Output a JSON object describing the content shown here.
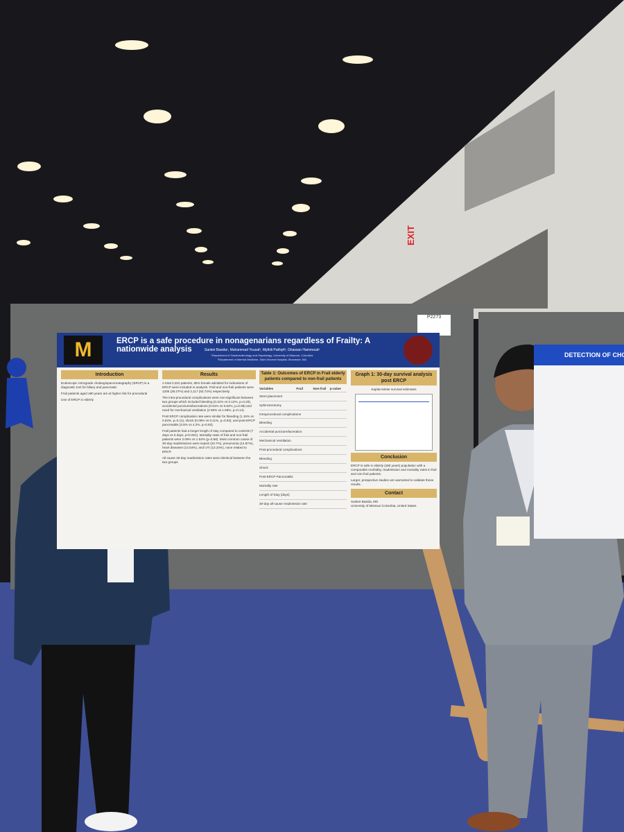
{
  "venue": {
    "exit_sign": "EXIT",
    "poster_number": "P2273"
  },
  "poster": {
    "title": "ERCP is a safe procedure in nonagenarians regardless of Frailty: A nationwide analysis",
    "authors": "Sanket Basida¹, Muhammad Yousaf¹, Mythili Pathiyil², Ghassan Hammoud¹",
    "affiliations": [
      "¹Department of Gastroenterology and Hepatology, University of Missouri, Columbia",
      "²Department of Internal Medicine, Saint Vincent Hospital, Worcester, MA"
    ],
    "introduction": {
      "heading": "Introduction",
      "bullets": [
        "Endoscopic retrograde cholangiopancreatography (ERCP) is a diagnostic tool for biliary and pancreatic",
        "Frail patients aged ≥90 years are at higher risk for procedural",
        "Use of ERCP in elderly"
      ]
    },
    "results": {
      "heading": "Results",
      "bullets": [
        "A total 3,322 patients, 65% female admitted for indications of ERCP were included in analysis. Frail and non-frail patients were 1205 (36.27%) and 2,117 (63.72%) respectively.",
        "The intra-procedural complications were non-significant between two groups which included bleeding (0.31% vs 0.12%, p=0.29), accidental punctures/lacerations (0.81% vs 0.82%, p=0.98) and need for mechanical ventilation (2.69% vs 1.69%, p=0.14).",
        "Post ERCP complication rate were similar for bleeding (1.15% vs 0.63%, p=0.11), shock (0.09% vs 0.11%, p=0.93), and post-ERCP pancreatitis (3.5% vs 4.2%, p=0.83).",
        "Frail patients had a longer length of stay compared to controls (7 days vs 5 days, p<0.001). Mortality rates of frail and non-frail patients were 2.09% vs 1.53% (p=0.58). Most common cause of 30-day readmissions were sepsis (23.7%), pneumonia (14.87%), heart diseases (14.54%), and UTI (13.34%), none related to ERCP.",
        "All-cause 30-day readmission rates were identical between the two groups."
      ]
    },
    "table": {
      "heading": "Table 1: Outcomes of ERCP in Frail elderly patients compared to non-frail patients",
      "columns": [
        "Variables",
        "Frail",
        "Non-frail",
        "p-value"
      ],
      "rows": [
        "Stent placement",
        "Sphincterotomy",
        "Intraprocedural complications",
        "Bleeding",
        "Accidental puncture/laceration",
        "Mechanical Ventilation",
        "Post-procedural complications",
        "Bleeding",
        "Shock",
        "Post-ERCP Pancreatitis",
        "Mortality rate",
        "Length of Stay (days)",
        "30-day all-cause readmission rate"
      ]
    },
    "graph": {
      "heading": "Graph 1: 30-day survival analysis post ERCP",
      "subtitle": "Kaplan-Meier survival estimates"
    },
    "conclusion": {
      "heading": "Conclusion",
      "bullets": [
        "ERCP is safe in elderly (≥90 years) population with a comparable morbidity, readmission and mortality rates in frail and non-frail patients.",
        "Larger, prospective studies are warranted to validate these results."
      ]
    },
    "contact": {
      "heading": "Contact",
      "lines": [
        "Sanket Basida, MD",
        "University of Missouri Columbia, United States"
      ]
    }
  },
  "right_poster": {
    "title": "DETECTION OF CHO"
  }
}
